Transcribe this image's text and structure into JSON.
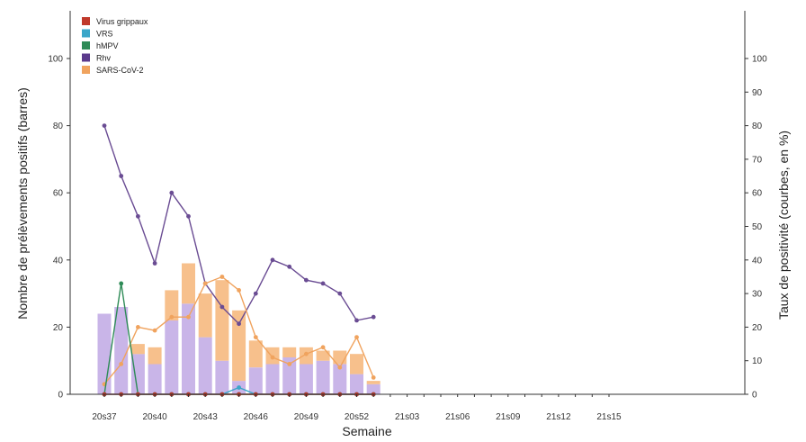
{
  "chart_data": {
    "type": "bar",
    "xlabel": "Semaine",
    "ylabel_left": "Nombre de prélèvements positifs (barres)",
    "ylabel_right": "Taux de positivité (courbes, en %)",
    "ylim_left": [
      0,
      100
    ],
    "ylim_right": [
      0,
      100
    ],
    "y_ticks_left": [
      0,
      20,
      40,
      60,
      80,
      100
    ],
    "y_ticks_right": [
      0,
      10,
      20,
      30,
      40,
      50,
      60,
      70,
      80,
      90,
      100
    ],
    "x_tick_labels": [
      "20s37",
      "20s40",
      "20s43",
      "20s46",
      "20s49",
      "20s52",
      "21s03",
      "21s06",
      "21s09",
      "21s12",
      "21s15"
    ],
    "n_weeks": 31,
    "legend": [
      {
        "name": "Virus grippaux",
        "color": "#c0392b"
      },
      {
        "name": "VRS",
        "color": "#3aa6c9"
      },
      {
        "name": "hMPV",
        "color": "#2e8b57"
      },
      {
        "name": "Rhv",
        "color": "#5b3a8c"
      },
      {
        "name": "SARS-CoV-2",
        "color": "#f0a35e"
      }
    ],
    "bar_colors": {
      "Rhv": "#c9b5e8",
      "SARS-CoV-2": "#f7c08c"
    },
    "series_bars": [
      {
        "name": "Rhv",
        "values": [
          24,
          26,
          12,
          9,
          22,
          27,
          17,
          10,
          4,
          8,
          9,
          11,
          9,
          10,
          9,
          6,
          3,
          0,
          0,
          0,
          0,
          0,
          0,
          0,
          0,
          0,
          0,
          0,
          0,
          0,
          0
        ]
      },
      {
        "name": "SARS-CoV-2",
        "values": [
          0,
          0,
          3,
          5,
          9,
          12,
          13,
          24,
          21,
          8,
          5,
          3,
          5,
          3,
          4,
          6,
          1,
          0,
          0,
          0,
          0,
          0,
          0,
          0,
          0,
          0,
          0,
          0,
          0,
          0,
          0
        ]
      }
    ],
    "series_lines": [
      {
        "name": "Rhv",
        "color": "#6a4c93",
        "values": [
          80,
          65,
          53,
          39,
          60,
          53,
          33,
          26,
          21,
          30,
          40,
          38,
          34,
          33,
          30,
          22,
          23
        ]
      },
      {
        "name": "SARS-CoV-2",
        "color": "#f0a35e",
        "values": [
          3,
          9,
          20,
          19,
          23,
          23,
          33,
          35,
          31,
          17,
          11,
          9,
          12,
          14,
          8,
          17,
          5
        ]
      },
      {
        "name": "hMPV",
        "color": "#2e8b57",
        "values": [
          0,
          33,
          0,
          0,
          0,
          0,
          0,
          0,
          0,
          0,
          0,
          0,
          0,
          0,
          0,
          0,
          0
        ]
      },
      {
        "name": "VRS",
        "color": "#3aa6c9",
        "values": [
          0,
          0,
          0,
          0,
          0,
          0,
          0,
          0,
          2,
          0,
          0,
          0,
          0,
          0,
          0,
          0,
          0
        ]
      },
      {
        "name": "Virus grippaux",
        "color": "#c0392b",
        "values": [
          0,
          0,
          0,
          0,
          0,
          0,
          0,
          0,
          0,
          0,
          0,
          0,
          0,
          0,
          0,
          0,
          0
        ]
      }
    ]
  }
}
